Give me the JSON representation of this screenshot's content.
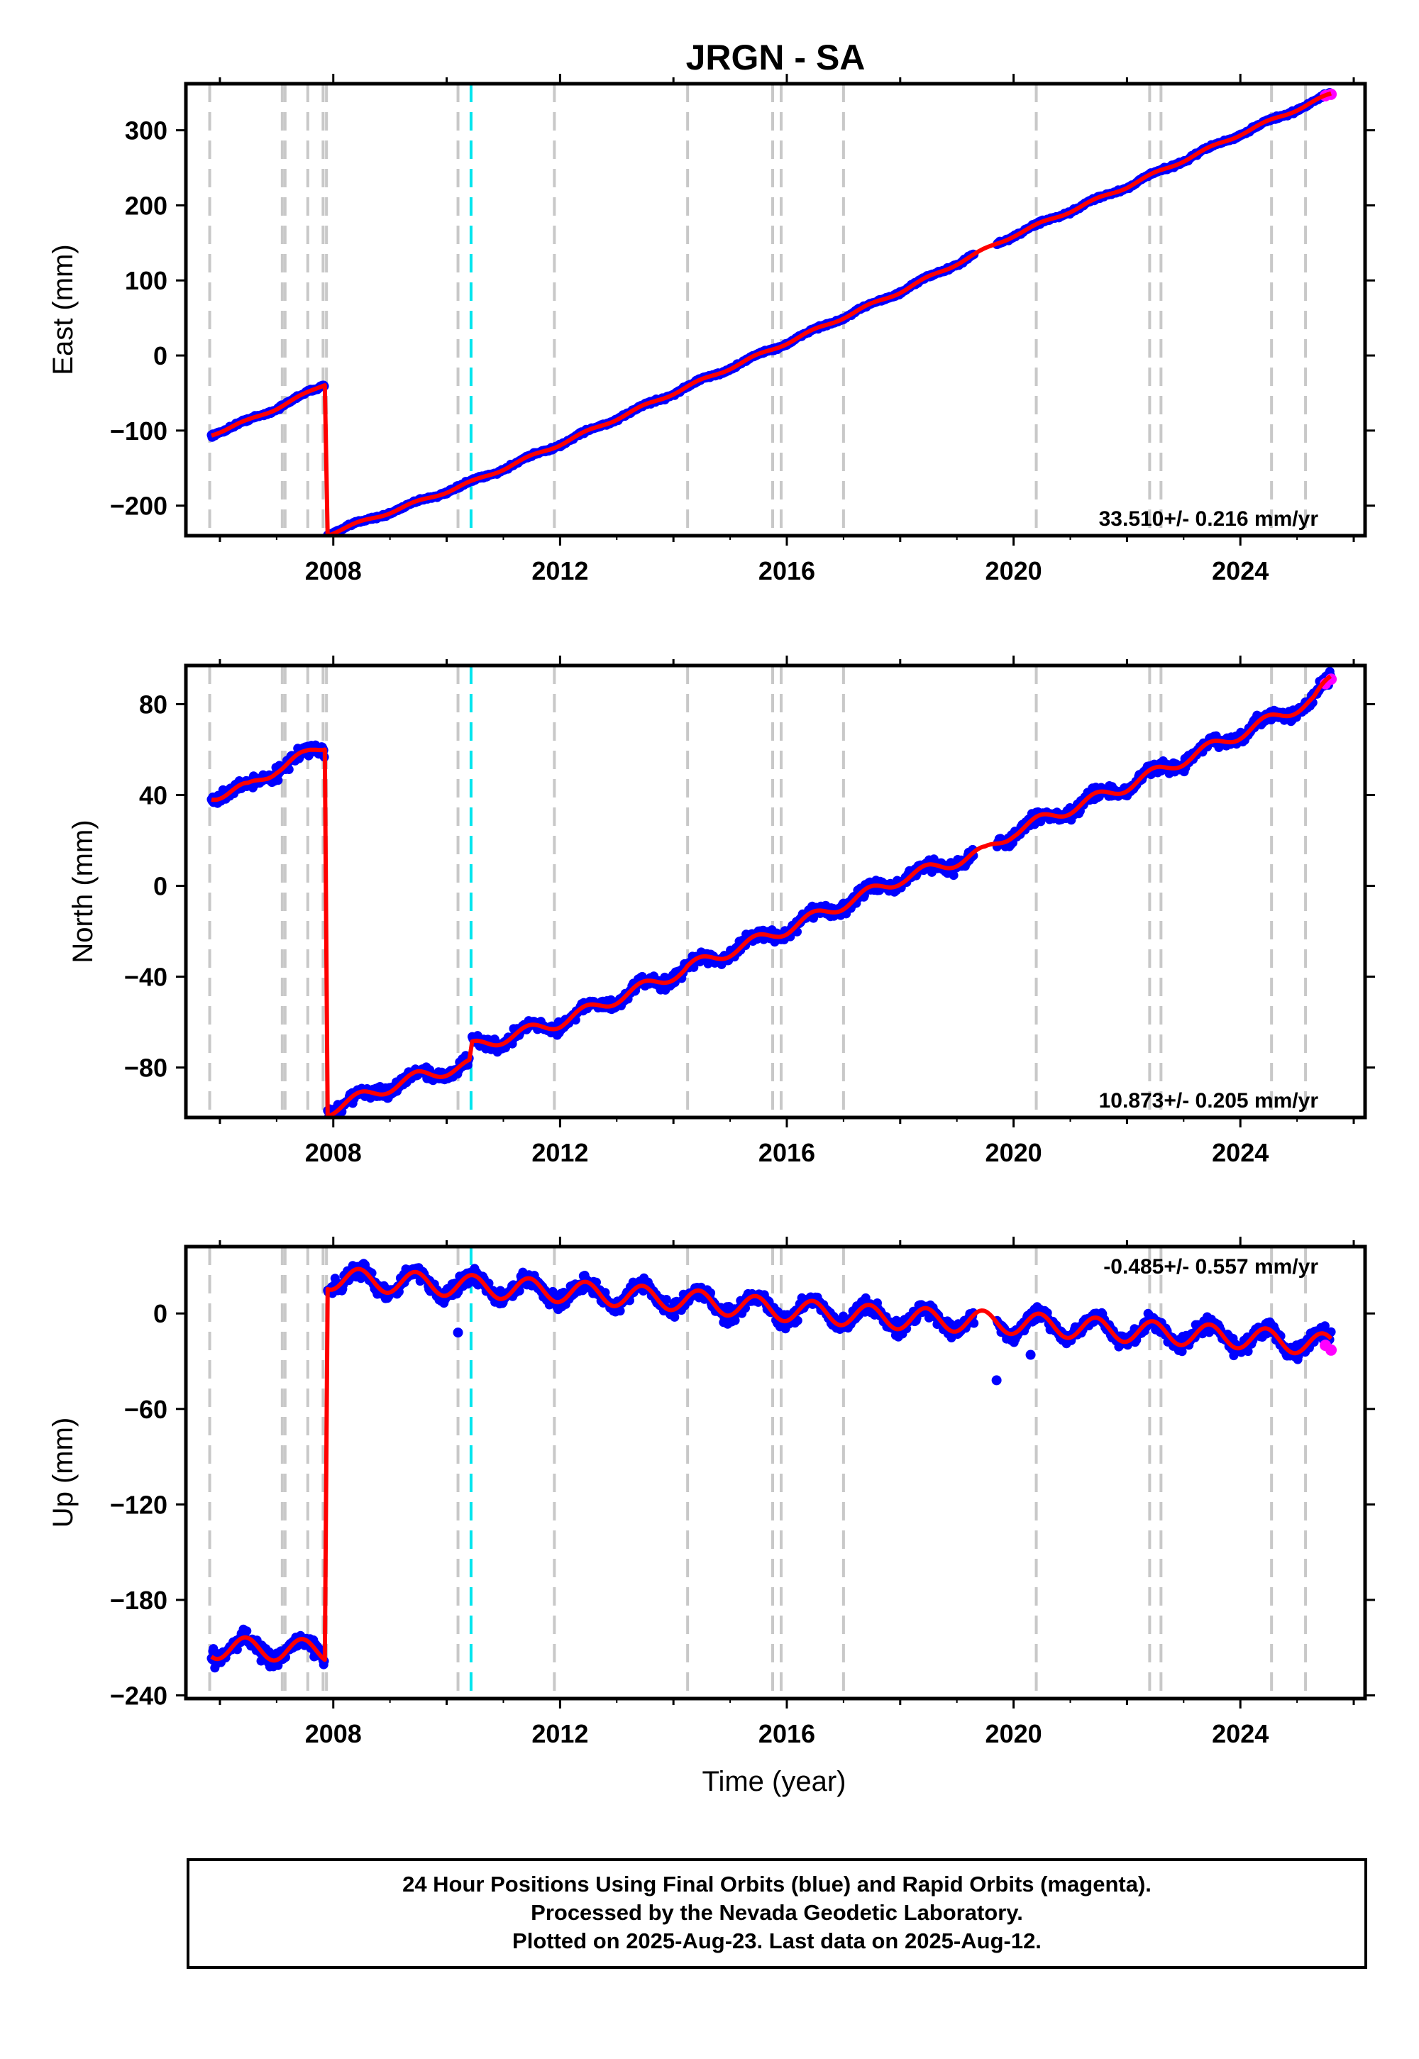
{
  "title": "JRGN - SA",
  "footer": {
    "lines": [
      "24 Hour Positions Using Final Orbits (blue) and Rapid Orbits (magenta).",
      "Processed by the Nevada Geodetic Laboratory.",
      "Plotted on 2025-Aug-23. Last data on 2025-Aug-12."
    ]
  },
  "colors": {
    "final_orbits": "#0000ff",
    "rapid_orbits": "#ff00ff",
    "model_fit": "#ff0000",
    "equipment_change": "#c8c8c8",
    "earthquake": "#00e5ee"
  },
  "chart_data": [
    {
      "type": "scatter",
      "name": "east",
      "xlabel": "",
      "ylabel": "East (mm)",
      "xlim": [
        2005.4,
        2026.2
      ],
      "ylim": [
        -240,
        362
      ],
      "xticks": [
        2008,
        2012,
        2016,
        2020,
        2024
      ],
      "xminor": [
        2006,
        2010,
        2014,
        2018,
        2022,
        2026
      ],
      "yticks": [
        -200,
        -100,
        0,
        100,
        200,
        300
      ],
      "rate_text": "33.510+/- 0.216 mm/yr",
      "rate_position": "bottom-right",
      "grid": false,
      "segments": [
        {
          "x": [
            2005.85,
            2006.5,
            2007.0,
            2007.5,
            2007.85
          ],
          "y": [
            -105,
            -87,
            -70,
            -52,
            -38
          ]
        },
        {
          "x": [
            2007.9,
            2008.5,
            2009.5,
            2010.5,
            2012.0,
            2014.0,
            2016.0,
            2018.0,
            2020.0,
            2022.0,
            2024.0,
            2025.6
          ],
          "y": [
            -238,
            -222,
            -195,
            -167,
            -118,
            -50,
            17,
            85,
            160,
            225,
            295,
            348
          ]
        }
      ],
      "rapid": {
        "x": [
          2025.5,
          2025.6
        ],
        "y": [
          346,
          348
        ]
      },
      "outliers": []
    },
    {
      "type": "scatter",
      "name": "north",
      "xlabel": "",
      "ylabel": "North (mm)",
      "xlim": [
        2005.4,
        2026.2
      ],
      "ylim": [
        -102,
        97
      ],
      "xticks": [
        2008,
        2012,
        2016,
        2020,
        2024
      ],
      "xminor": [
        2006,
        2010,
        2014,
        2018,
        2022,
        2026
      ],
      "yticks": [
        -80,
        -40,
        0,
        40,
        80
      ],
      "rate_text": "10.873+/- 0.205 mm/yr",
      "rate_position": "bottom-right",
      "grid": false,
      "segments": [
        {
          "x": [
            2005.85,
            2006.5,
            2007.0,
            2007.5,
            2007.85
          ],
          "y": [
            40,
            43,
            52,
            57,
            62
          ]
        },
        {
          "x": [
            2007.9,
            2008.5,
            2009.5,
            2010.4
          ],
          "y": [
            -99,
            -93,
            -84,
            -79
          ]
        },
        {
          "x": [
            2010.45,
            2012.0,
            2014.2
          ],
          "y": [
            -71,
            -60,
            -37
          ]
        },
        {
          "x": [
            2014.25,
            2016.0,
            2018.0,
            2019.5,
            2020.0,
            2022.0,
            2024.0,
            2025.3,
            2025.6
          ],
          "y": [
            -36,
            -19,
            3,
            15,
            24,
            44,
            67,
            82,
            91
          ]
        }
      ],
      "rapid": {
        "x": [
          2025.5,
          2025.6
        ],
        "y": [
          89,
          91
        ]
      },
      "outliers": []
    },
    {
      "type": "scatter",
      "name": "up",
      "xlabel": "Time (year)",
      "ylabel": "Up (mm)",
      "xlim": [
        2005.4,
        2026.2
      ],
      "ylim": [
        -242,
        42
      ],
      "xticks": [
        2008,
        2012,
        2016,
        2020,
        2024
      ],
      "xminor": [
        2006,
        2010,
        2014,
        2018,
        2022,
        2026
      ],
      "yticks": [
        -240,
        -180,
        -120,
        -60,
        0
      ],
      "rate_text": "-0.485+/- 0.557 mm/yr",
      "rate_position": "top-right",
      "grid": false,
      "segments": [
        {
          "x": [
            2005.85,
            2007.85
          ],
          "y": [
            -210,
            -212
          ]
        },
        {
          "x": [
            2007.9,
            2010.0,
            2012.0,
            2014.0,
            2016.0,
            2018.0,
            2020.0,
            2022.0,
            2024.0,
            2025.6
          ],
          "y": [
            22,
            18,
            14,
            9,
            2,
            -3,
            -6,
            -11,
            -15,
            -20
          ]
        }
      ],
      "rapid": {
        "x": [
          2025.5,
          2025.6
        ],
        "y": [
          -20,
          -23
        ]
      },
      "outliers": [
        {
          "x": 2010.2,
          "y": -12
        },
        {
          "x": 2019.7,
          "y": -42
        },
        {
          "x": 2020.3,
          "y": -26
        }
      ]
    }
  ],
  "equipment_changes": [
    2005.82,
    2007.1,
    2007.15,
    2007.55,
    2007.82,
    2007.88,
    2010.2,
    2011.9,
    2014.25,
    2015.75,
    2015.9,
    2017.0,
    2020.4,
    2022.4,
    2022.6,
    2024.55,
    2025.15
  ],
  "earthquakes": [
    2010.43
  ]
}
